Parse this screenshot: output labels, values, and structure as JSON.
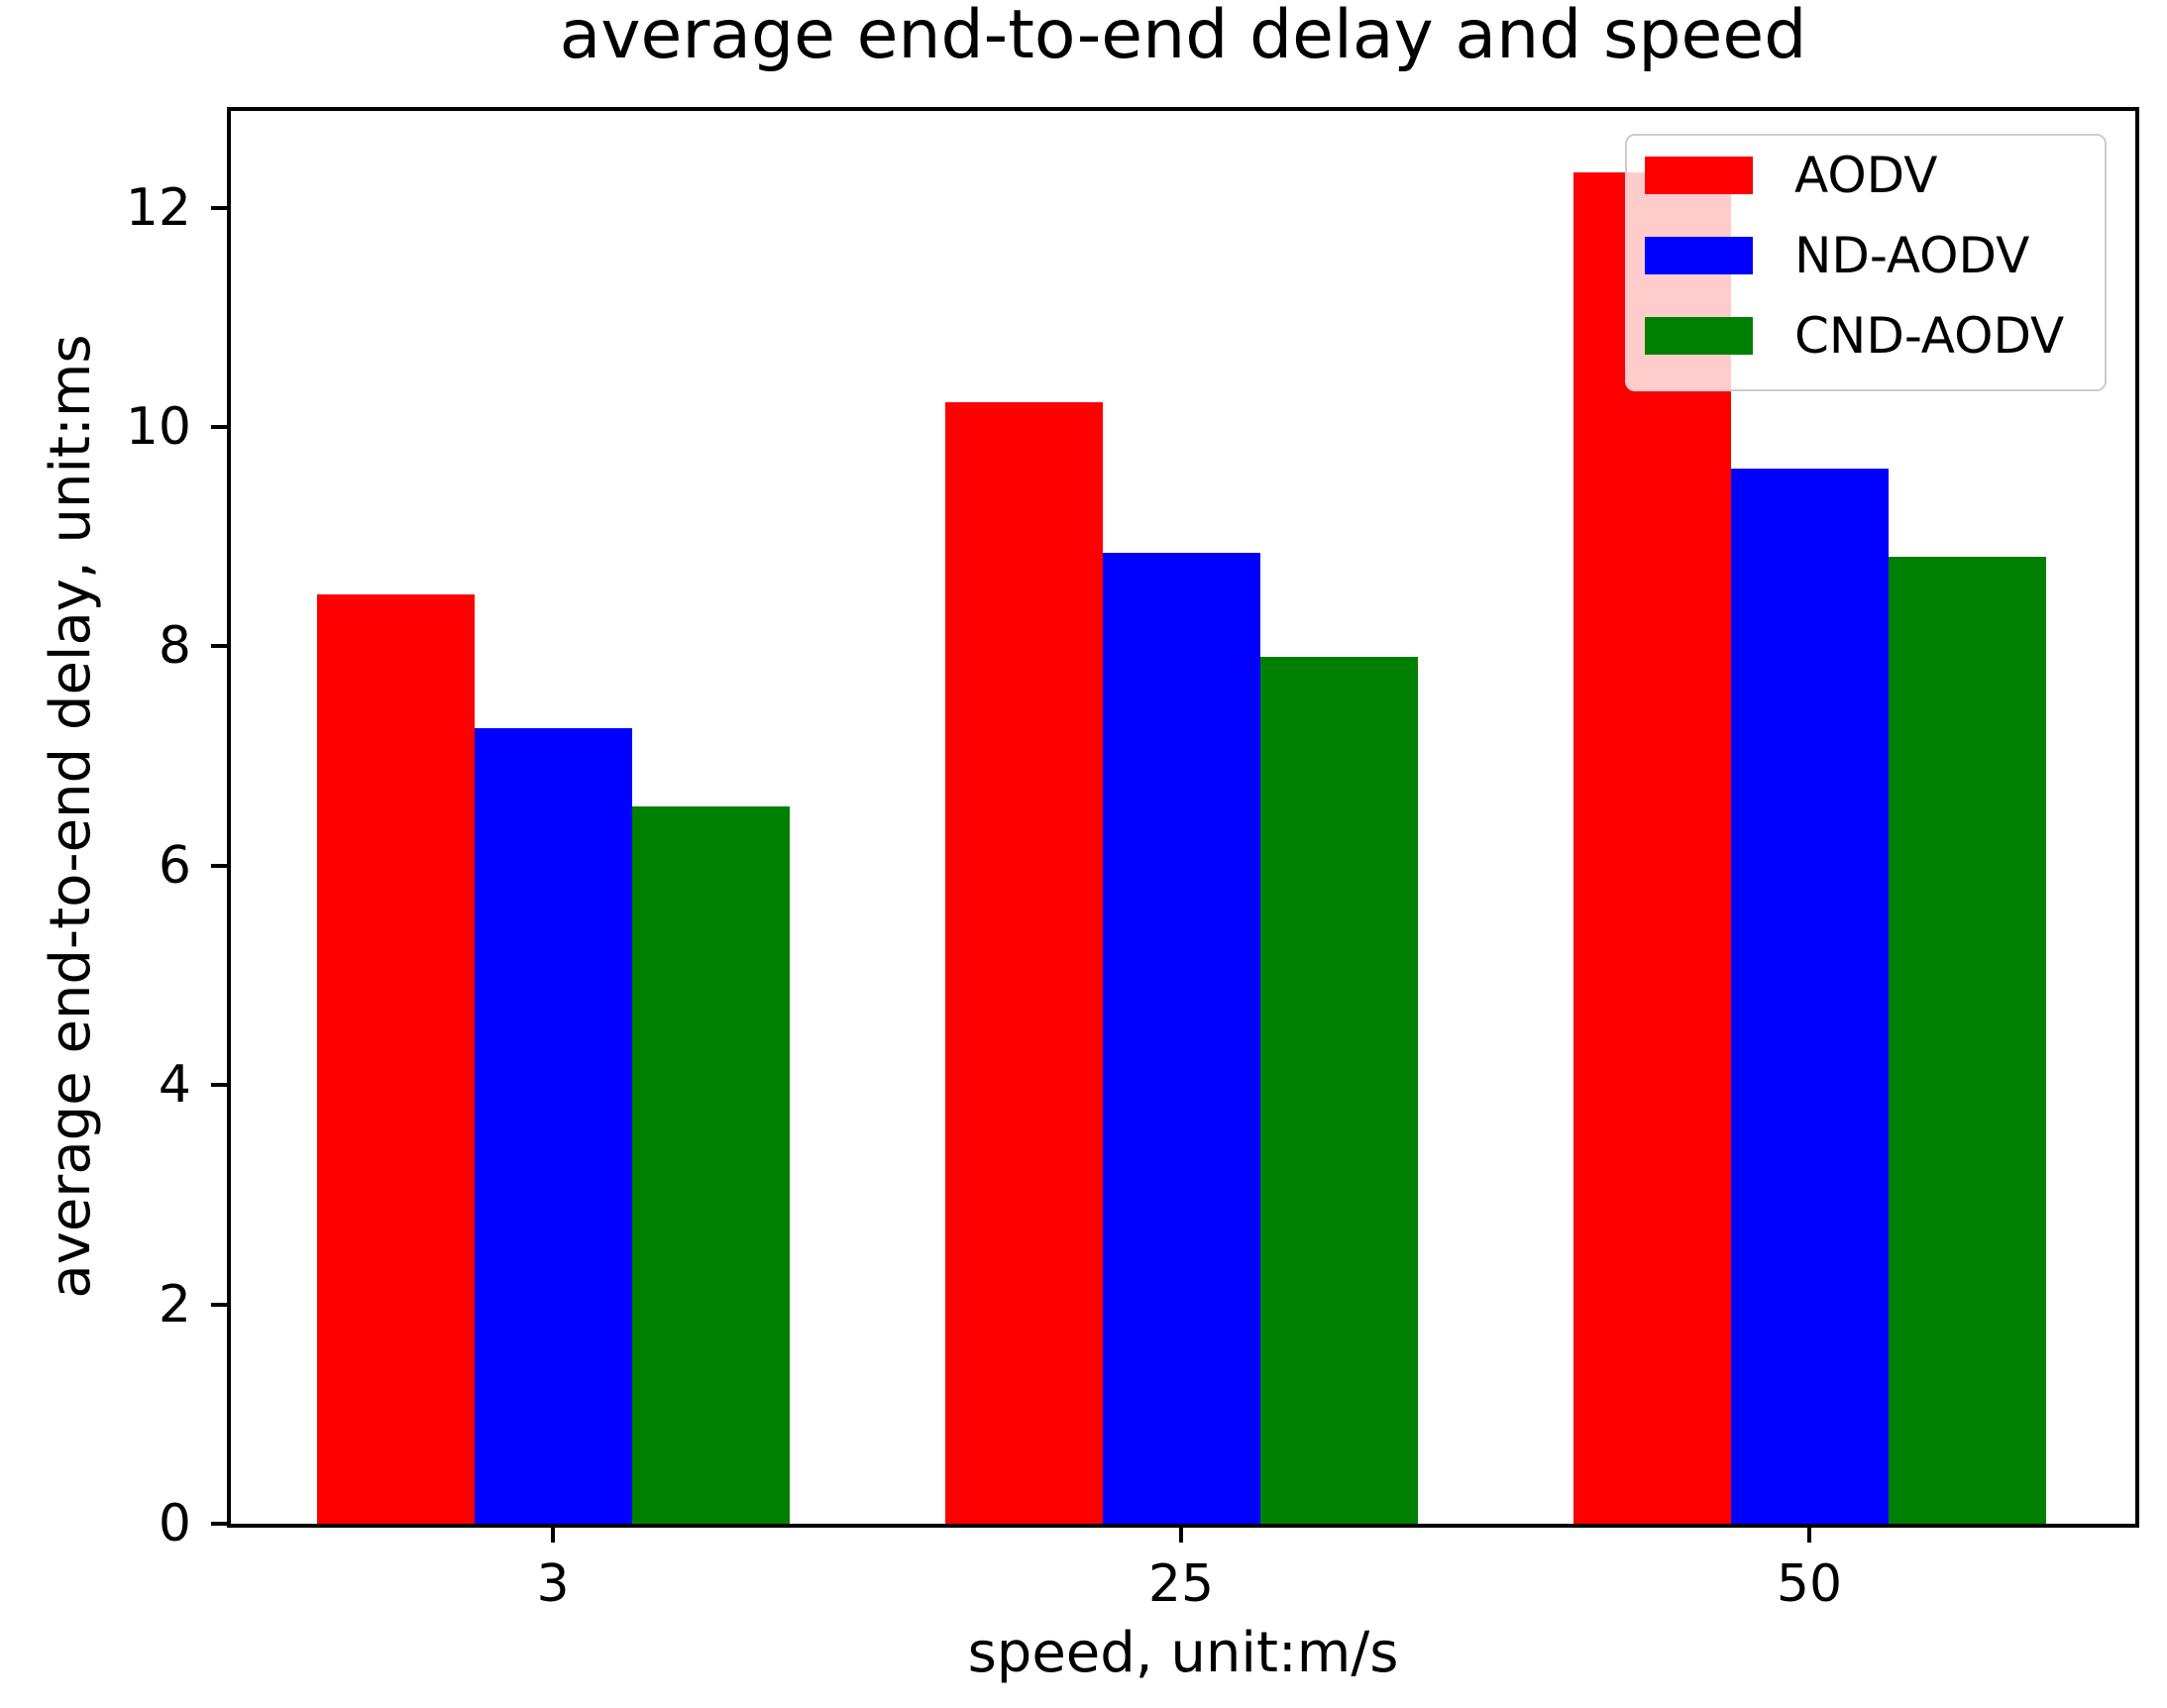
{
  "chart_data": {
    "type": "bar",
    "title": "average end-to-end delay and speed",
    "xlabel": "speed, unit:m/s",
    "ylabel": "average end-to-end delay, unit:ms",
    "categories": [
      "3",
      "25",
      "50"
    ],
    "series": [
      {
        "name": "AODV",
        "color": "#ff0000",
        "values": [
          8.47,
          10.23,
          12.32
        ]
      },
      {
        "name": "ND-AODV",
        "color": "#0000ff",
        "values": [
          7.25,
          8.85,
          9.62
        ]
      },
      {
        "name": "CND-AODV",
        "color": "#008000",
        "values": [
          6.54,
          7.9,
          8.82
        ]
      }
    ],
    "ylim": [
      0,
      12.9
    ],
    "yticks": [
      0,
      2,
      4,
      6,
      8,
      10,
      12
    ],
    "legend_position": "upper right",
    "grid": false,
    "axis_color": "#000000",
    "bar_edge": "none",
    "legend_face_color": "rgba(255,255,255,0.8)",
    "legend_edge_color": "#cccccc"
  }
}
